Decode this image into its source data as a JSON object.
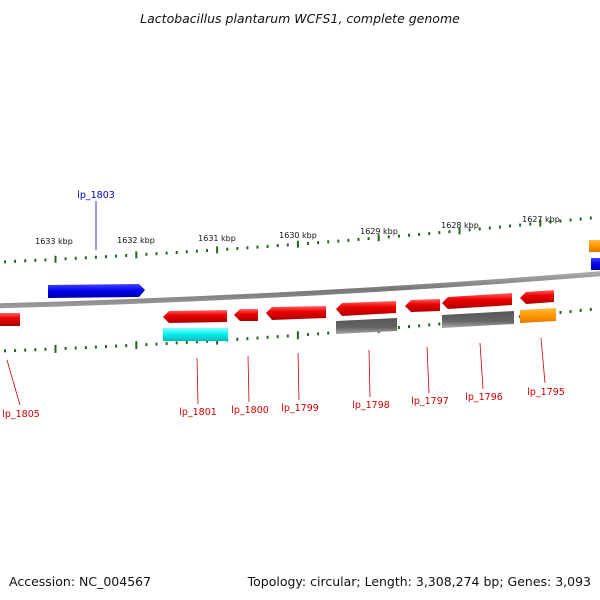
{
  "title": "Lactobacillus plantarum WCFS1, complete genome",
  "accession": "Accession: NC_004567",
  "summary": "Topology: circular; Length: 3,308,274 bp; Genes: 3,093",
  "colors": {
    "forward_gene": "#0000ee",
    "reverse_gene": "#ee0000",
    "cyan_feature": "#00eeee",
    "gray_feature": "#666666",
    "orange_feature": "#ff9900",
    "tick": "#226622",
    "backbone": "#888888"
  },
  "scale_labels": [
    "1633 kbp",
    "1632 kbp",
    "1631 kbp",
    "1630 kbp",
    "1629 kbp",
    "1628 kbp",
    "1627 kbp"
  ],
  "gene_labels": {
    "lp_1803": "lp_1803",
    "lp_1805": "lp_1805",
    "lp_1801": "lp_1801",
    "lp_1800": "lp_1800",
    "lp_1799": "lp_1799",
    "lp_1798": "lp_1798",
    "lp_1797": "lp_1797",
    "lp_1796": "lp_1796",
    "lp_1795": "lp_1795"
  }
}
